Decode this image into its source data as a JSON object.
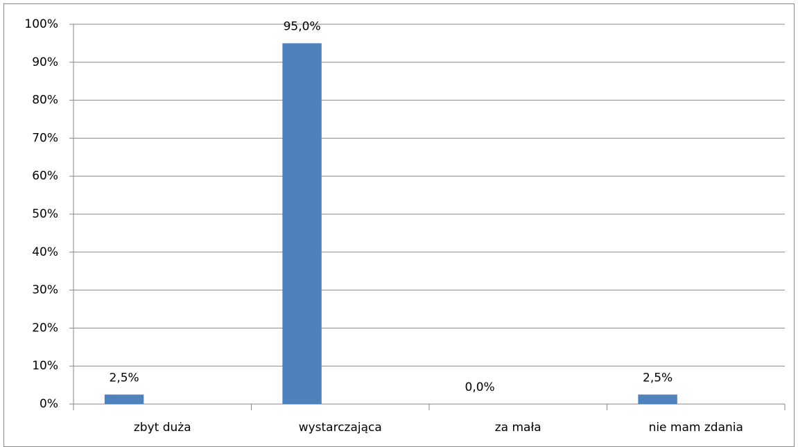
{
  "chart_data": {
    "type": "bar",
    "categories": [
      "zbyt duża",
      "wystarczająca",
      "za mała",
      "nie mam zdania"
    ],
    "values": [
      2.5,
      95.0,
      0.0,
      2.5
    ],
    "value_labels": [
      "2,5%",
      "95,0%",
      "0,0%",
      "2,5%"
    ],
    "color": "#4f81bd",
    "ylim": [
      0,
      100
    ],
    "yticks": [
      {
        "value": 0,
        "label": "0%"
      },
      {
        "value": 10,
        "label": "10%"
      },
      {
        "value": 20,
        "label": "20%"
      },
      {
        "value": 30,
        "label": "30%"
      },
      {
        "value": 40,
        "label": "40%"
      },
      {
        "value": 50,
        "label": "50%"
      },
      {
        "value": 60,
        "label": "60%"
      },
      {
        "value": 70,
        "label": "70%"
      },
      {
        "value": 80,
        "label": "80%"
      },
      {
        "value": 90,
        "label": "90%"
      },
      {
        "value": 100,
        "label": "100%"
      }
    ],
    "grid": true
  }
}
